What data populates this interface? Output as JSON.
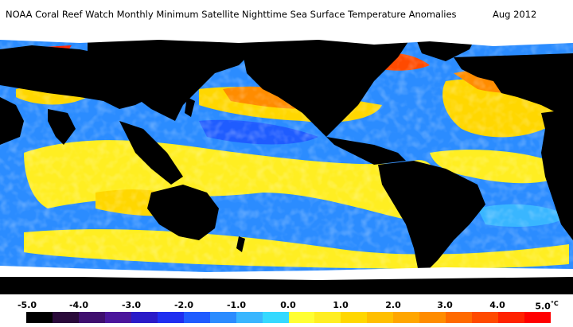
{
  "title": {
    "main": "NOAA Coral Reef Watch Monthly Minimum Satellite Nighttime Sea Surface Temperature Anomalies",
    "date": "Aug 2012"
  },
  "legend": {
    "labels": [
      "-5.0",
      "-4.0",
      "-3.0",
      "-2.0",
      "-1.0",
      "0.0",
      "1.0",
      "2.0",
      "3.0",
      "4.0",
      "5.0"
    ],
    "unit": "°C",
    "colors": [
      "#000000",
      "#2a0a3a",
      "#3f0f6e",
      "#4b169c",
      "#2a1bc8",
      "#1f2ff0",
      "#1f5cff",
      "#2b8cff",
      "#39b6ff",
      "#35d9ff",
      "#ffff33",
      "#ffee22",
      "#ffd700",
      "#ffbf00",
      "#ffa600",
      "#ff8c00",
      "#ff6a00",
      "#ff4a00",
      "#ff2200",
      "#ff0000"
    ]
  },
  "map_colors": {
    "land": "#000000",
    "ice": "#ffffff",
    "cold": "#1f5cff",
    "cool": "#39b6ff",
    "warm": "#ffee22",
    "hot": "#ff8c00"
  }
}
